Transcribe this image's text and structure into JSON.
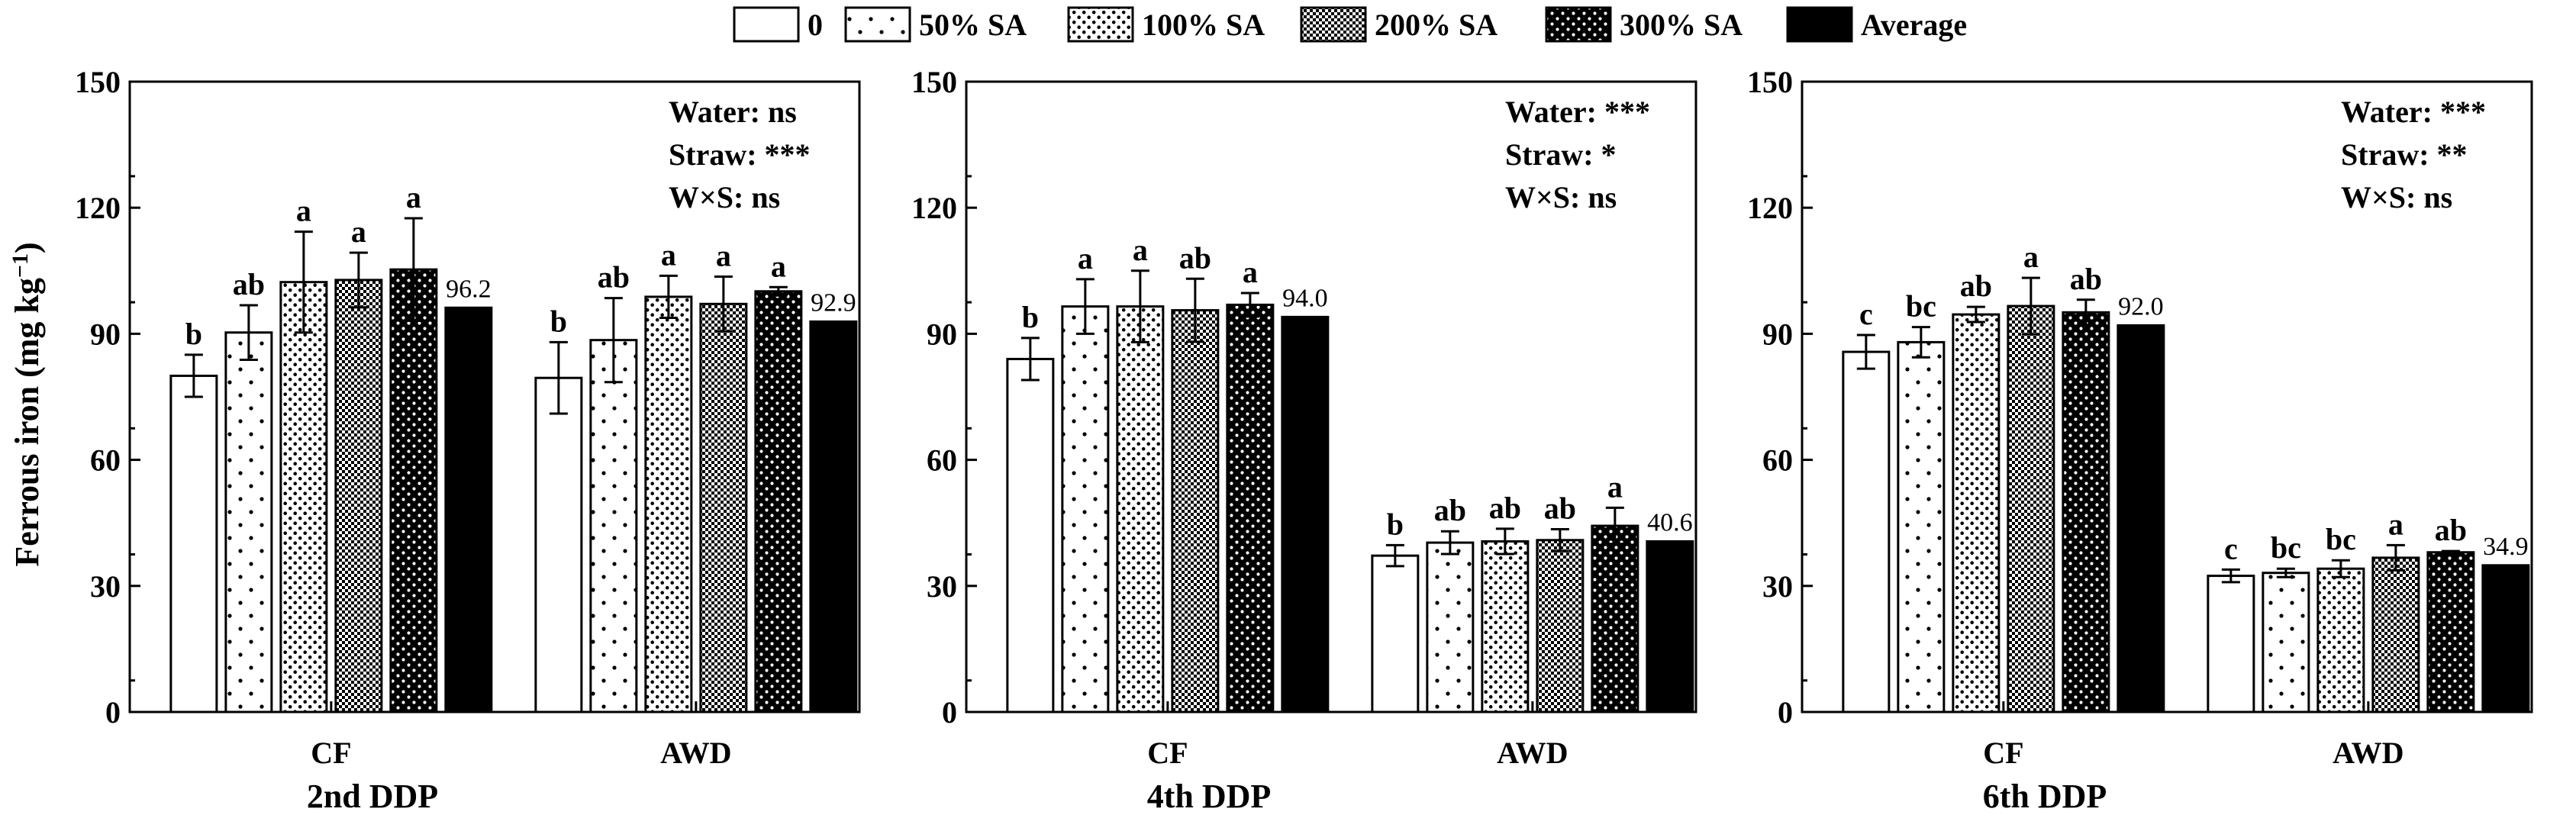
{
  "y_axis_label": "Ferrous iron (mg kg",
  "y_axis_label_sup": "−1",
  "y_axis_label_end": ")",
  "legend": [
    {
      "label": "0",
      "pattern": "none"
    },
    {
      "label": "50% SA",
      "pattern": "sparse-dots"
    },
    {
      "label": "100% SA",
      "pattern": "dense-dots"
    },
    {
      "label": "200% SA",
      "pattern": "checker"
    },
    {
      "label": "300% SA",
      "pattern": "inverse-dots"
    },
    {
      "label": "Average",
      "pattern": "solid"
    }
  ],
  "colors": {
    "ink": "#000000",
    "background": "#ffffff"
  },
  "chart_data": [
    {
      "type": "bar",
      "title": "2nd DDP",
      "ylabel": "Ferrous iron (mg kg−1)",
      "ylim": [
        0,
        150
      ],
      "yticks": [
        "0",
        "30",
        "60",
        "90",
        "120",
        "150"
      ],
      "groups": [
        {
          "name": "CF",
          "values": [
            80,
            90.3,
            102.3,
            102.8,
            105.3
          ],
          "errors": [
            5,
            6.5,
            12,
            6.5,
            12.2
          ],
          "letters": [
            "b",
            "ab",
            "a",
            "a",
            "a"
          ],
          "average": 96.2,
          "average_label": "96.2"
        },
        {
          "name": "AWD",
          "values": [
            79.5,
            88.5,
            98.8,
            97.1,
            100.1
          ],
          "errors": [
            8.5,
            10,
            5,
            6.5,
            1
          ],
          "letters": [
            "b",
            "ab",
            "a",
            "a",
            "a"
          ],
          "average": 92.9,
          "average_label": "92.9"
        }
      ],
      "annotations": [
        "Water: ns",
        "Straw: ***",
        "W×S: ns"
      ]
    },
    {
      "type": "bar",
      "title": "4th DDP",
      "ylabel": "Ferrous iron (mg kg−1)",
      "ylim": [
        0,
        150
      ],
      "yticks": [
        "0",
        "30",
        "60",
        "90",
        "120",
        "150"
      ],
      "groups": [
        {
          "name": "CF",
          "values": [
            84,
            96.5,
            96.5,
            95.6,
            96.9
          ],
          "errors": [
            5,
            6.5,
            8.5,
            7.5,
            2.8
          ],
          "letters": [
            "b",
            "a",
            "a",
            "ab",
            "a"
          ],
          "average": 94.0,
          "average_label": "94.0"
        },
        {
          "name": "AWD",
          "values": [
            37.2,
            40.3,
            40.6,
            40.9,
            44.3
          ],
          "errors": [
            2.5,
            2.7,
            3,
            2.6,
            4.3
          ],
          "letters": [
            "b",
            "ab",
            "ab",
            "ab",
            "a"
          ],
          "average": 40.6,
          "average_label": "40.6"
        }
      ],
      "annotations": [
        "Water: ***",
        "Straw: *",
        "W×S: ns"
      ]
    },
    {
      "type": "bar",
      "title": "6th DDP",
      "ylabel": "Ferrous iron (mg kg−1)",
      "ylim": [
        0,
        150
      ],
      "yticks": [
        "0",
        "30",
        "60",
        "90",
        "120",
        "150"
      ],
      "groups": [
        {
          "name": "CF",
          "values": [
            85.7,
            88,
            94.6,
            96.6,
            95.1
          ],
          "errors": [
            4,
            3.6,
            1.8,
            6.7,
            3
          ],
          "letters": [
            "c",
            "bc",
            "ab",
            "a",
            "ab"
          ],
          "average": 92.0,
          "average_label": "92.0"
        },
        {
          "name": "AWD",
          "values": [
            32.4,
            33.1,
            34.1,
            36.7,
            38
          ],
          "errors": [
            1.5,
            1,
            2,
            3,
            0.3
          ],
          "letters": [
            "c",
            "bc",
            "bc",
            "a",
            "ab"
          ],
          "average": 34.9,
          "average_label": "34.9"
        }
      ],
      "annotations": [
        "Water: ***",
        "Straw: **",
        "W×S: ns"
      ]
    }
  ]
}
